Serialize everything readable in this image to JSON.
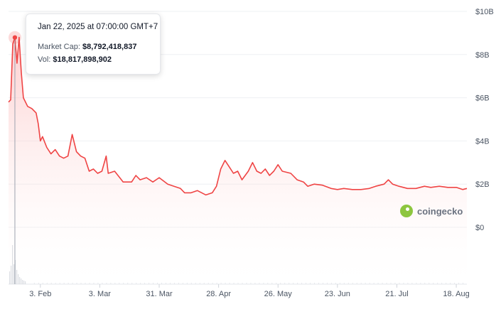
{
  "tooltip": {
    "date": "Jan 22, 2025 at 07:00:00 GMT+7",
    "market_cap_label": "Market Cap:",
    "market_cap_value": "$8,792,418,837",
    "volume_label": "Vol:",
    "volume_value": "$18,817,898,902"
  },
  "watermark": {
    "name": "coingecko",
    "icon": "gecko-logo-icon"
  },
  "colors": {
    "line": "#ef4444",
    "area_top": "#fecaca",
    "grid": "#eef0f3",
    "marker": "#ef4444",
    "volume": "#d1d5db"
  },
  "chart_data": {
    "type": "area",
    "title": "",
    "xlabel": "",
    "ylabel": "",
    "y_tick_labels": [
      "$10B",
      "$8B",
      "$6B",
      "$4B",
      "$2B",
      "$0"
    ],
    "y_ticks": [
      10,
      8,
      6,
      4,
      2,
      0
    ],
    "ylim": [
      0,
      10
    ],
    "x_tick_labels": [
      "3. Feb",
      "3. Mar",
      "31. Mar",
      "28. Apr",
      "26. May",
      "23. Jun",
      "21. Jul",
      "18. Aug"
    ],
    "x_ticks": [
      "2025-02-03",
      "2025-03-03",
      "2025-03-31",
      "2025-04-28",
      "2025-05-26",
      "2025-06-23",
      "2025-07-21",
      "2025-08-18"
    ],
    "xlim": [
      "2025-01-19",
      "2025-08-23"
    ],
    "grid": true,
    "highlight": {
      "x": "2025-01-22",
      "y": 8.79
    },
    "series": [
      {
        "values_unit": "billion USD market cap",
        "points": [
          [
            "2025-01-19",
            5.8
          ],
          [
            "2025-01-20",
            5.9
          ],
          [
            "2025-01-21",
            8.5
          ],
          [
            "2025-01-22",
            8.79
          ],
          [
            "2025-01-23",
            7.6
          ],
          [
            "2025-01-24",
            8.8
          ],
          [
            "2025-01-25",
            7.2
          ],
          [
            "2025-01-26",
            6.0
          ],
          [
            "2025-01-28",
            5.6
          ],
          [
            "2025-01-30",
            5.5
          ],
          [
            "2025-02-01",
            5.3
          ],
          [
            "2025-02-02",
            4.8
          ],
          [
            "2025-02-03",
            4.0
          ],
          [
            "2025-02-04",
            4.2
          ],
          [
            "2025-02-06",
            3.7
          ],
          [
            "2025-02-08",
            3.4
          ],
          [
            "2025-02-10",
            3.6
          ],
          [
            "2025-02-12",
            3.3
          ],
          [
            "2025-02-14",
            3.2
          ],
          [
            "2025-02-16",
            3.3
          ],
          [
            "2025-02-18",
            4.3
          ],
          [
            "2025-02-20",
            3.5
          ],
          [
            "2025-02-22",
            3.3
          ],
          [
            "2025-02-24",
            3.2
          ],
          [
            "2025-02-26",
            2.6
          ],
          [
            "2025-02-28",
            2.7
          ],
          [
            "2025-03-02",
            2.5
          ],
          [
            "2025-03-04",
            2.6
          ],
          [
            "2025-03-06",
            3.3
          ],
          [
            "2025-03-07",
            2.5
          ],
          [
            "2025-03-10",
            2.6
          ],
          [
            "2025-03-14",
            2.1
          ],
          [
            "2025-03-18",
            2.1
          ],
          [
            "2025-03-20",
            2.4
          ],
          [
            "2025-03-22",
            2.2
          ],
          [
            "2025-03-25",
            2.3
          ],
          [
            "2025-03-28",
            2.1
          ],
          [
            "2025-03-31",
            2.3
          ],
          [
            "2025-04-04",
            2.0
          ],
          [
            "2025-04-07",
            1.9
          ],
          [
            "2025-04-10",
            1.8
          ],
          [
            "2025-04-12",
            1.6
          ],
          [
            "2025-04-15",
            1.6
          ],
          [
            "2025-04-18",
            1.7
          ],
          [
            "2025-04-22",
            1.5
          ],
          [
            "2025-04-25",
            1.6
          ],
          [
            "2025-04-27",
            1.9
          ],
          [
            "2025-04-29",
            2.7
          ],
          [
            "2025-05-01",
            3.1
          ],
          [
            "2025-05-03",
            2.8
          ],
          [
            "2025-05-05",
            2.5
          ],
          [
            "2025-05-07",
            2.6
          ],
          [
            "2025-05-09",
            2.2
          ],
          [
            "2025-05-12",
            2.6
          ],
          [
            "2025-05-14",
            3.0
          ],
          [
            "2025-05-16",
            2.6
          ],
          [
            "2025-05-18",
            2.5
          ],
          [
            "2025-05-20",
            2.7
          ],
          [
            "2025-05-22",
            2.4
          ],
          [
            "2025-05-24",
            2.6
          ],
          [
            "2025-05-26",
            2.9
          ],
          [
            "2025-05-28",
            2.6
          ],
          [
            "2025-06-01",
            2.5
          ],
          [
            "2025-06-04",
            2.2
          ],
          [
            "2025-06-07",
            2.1
          ],
          [
            "2025-06-09",
            1.9
          ],
          [
            "2025-06-12",
            2.0
          ],
          [
            "2025-06-16",
            1.95
          ],
          [
            "2025-06-20",
            1.8
          ],
          [
            "2025-06-23",
            1.75
          ],
          [
            "2025-06-26",
            1.8
          ],
          [
            "2025-06-30",
            1.75
          ],
          [
            "2025-07-04",
            1.75
          ],
          [
            "2025-07-08",
            1.8
          ],
          [
            "2025-07-11",
            1.9
          ],
          [
            "2025-07-15",
            2.0
          ],
          [
            "2025-07-17",
            2.2
          ],
          [
            "2025-07-19",
            2.0
          ],
          [
            "2025-07-22",
            1.9
          ],
          [
            "2025-07-26",
            1.8
          ],
          [
            "2025-07-30",
            1.8
          ],
          [
            "2025-08-03",
            1.9
          ],
          [
            "2025-08-06",
            1.85
          ],
          [
            "2025-08-10",
            1.9
          ],
          [
            "2025-08-14",
            1.85
          ],
          [
            "2025-08-18",
            1.85
          ],
          [
            "2025-08-21",
            1.75
          ],
          [
            "2025-08-23",
            1.8
          ]
        ]
      }
    ]
  }
}
